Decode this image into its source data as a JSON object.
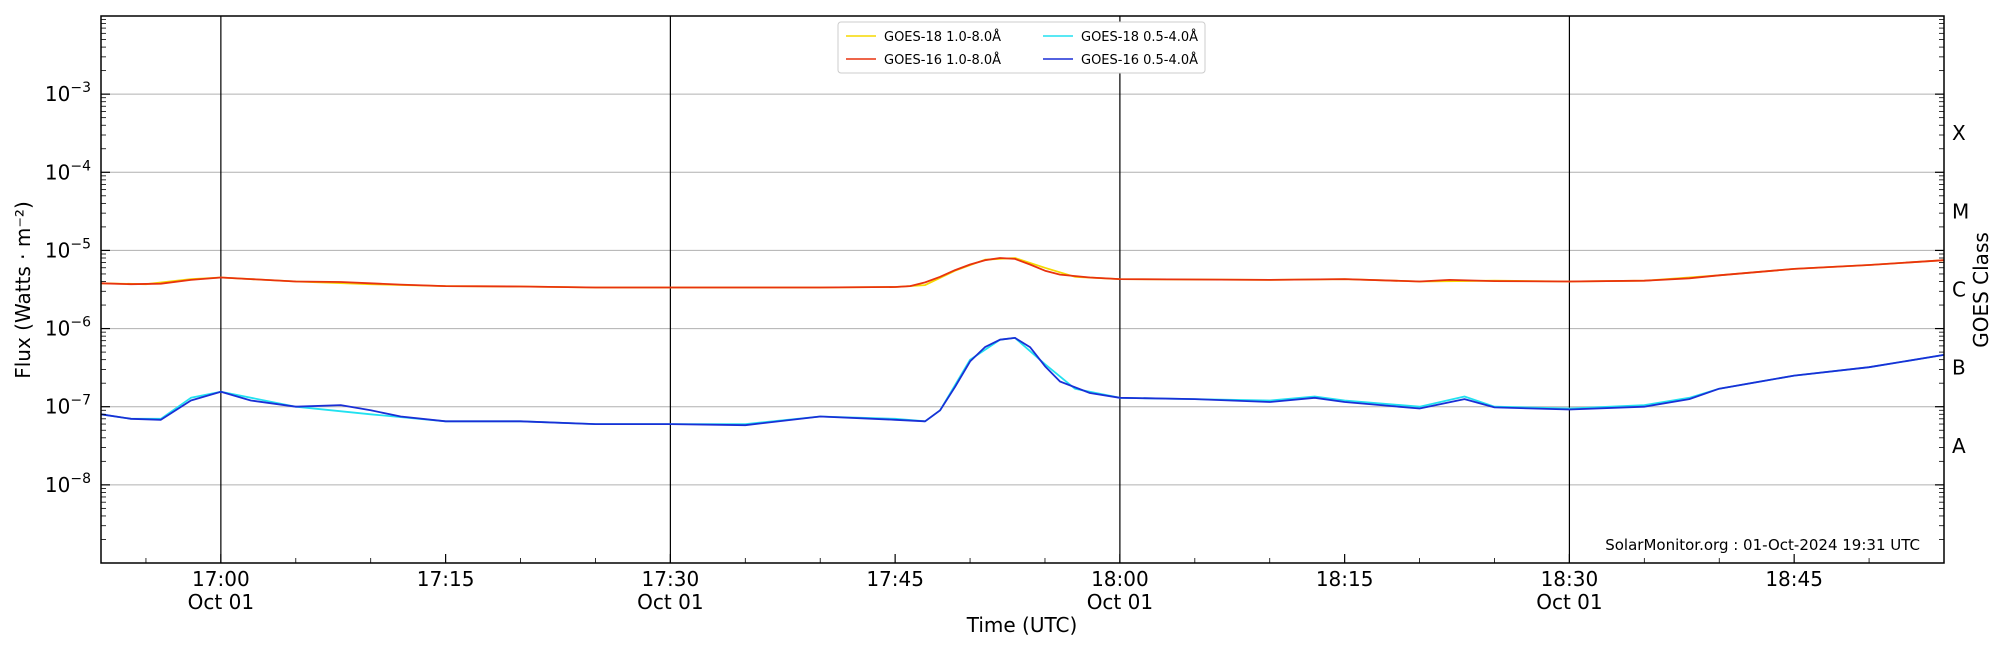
{
  "chart_data": {
    "type": "line",
    "xlabel": "Time (UTC)",
    "ylabel": "Flux (Watts · m⁻²)",
    "y2label": "GOES Class",
    "yscale": "log",
    "ylim": [
      1e-09,
      0.01
    ],
    "xlim": [
      "16:52",
      "18:55"
    ],
    "grid": true,
    "legend_position": "top-center",
    "credit": "SolarMonitor.org : 01-Oct-2024 19:31 UTC",
    "x_ticks": [
      {
        "time": "17:00",
        "date": "Oct 01",
        "major": true
      },
      {
        "time": "17:15",
        "date": "",
        "major": false
      },
      {
        "time": "17:30",
        "date": "Oct 01",
        "major": true
      },
      {
        "time": "17:45",
        "date": "",
        "major": false
      },
      {
        "time": "18:00",
        "date": "Oct 01",
        "major": true
      },
      {
        "time": "18:15",
        "date": "",
        "major": false
      },
      {
        "time": "18:30",
        "date": "Oct 01",
        "major": true
      },
      {
        "time": "18:45",
        "date": "",
        "major": false
      }
    ],
    "y_ticks": [
      {
        "exp": -8,
        "base": "10",
        "sup": "−8"
      },
      {
        "exp": -7,
        "base": "10",
        "sup": "−7"
      },
      {
        "exp": -6,
        "base": "10",
        "sup": "−6"
      },
      {
        "exp": -5,
        "base": "10",
        "sup": "−5"
      },
      {
        "exp": -4,
        "base": "10",
        "sup": "−4"
      },
      {
        "exp": -3,
        "base": "10",
        "sup": "−3"
      }
    ],
    "goes_classes": [
      {
        "label": "A",
        "log_flux": -7.5
      },
      {
        "label": "B",
        "log_flux": -6.5
      },
      {
        "label": "C",
        "log_flux": -5.5
      },
      {
        "label": "M",
        "log_flux": -4.5
      },
      {
        "label": "X",
        "log_flux": -3.5
      }
    ],
    "series": [
      {
        "name": "GOES-18 1.0-8.0Å",
        "color": "#f5d800",
        "x": [
          "16:52",
          "16:55",
          "16:58",
          "17:00",
          "17:05",
          "17:10",
          "17:15",
          "17:20",
          "17:25",
          "17:30",
          "17:35",
          "17:40",
          "17:45",
          "17:47",
          "17:49",
          "17:51",
          "17:53",
          "17:55",
          "17:57",
          "18:00",
          "18:05",
          "18:10",
          "18:15",
          "18:20",
          "18:25",
          "18:30",
          "18:35",
          "18:40",
          "18:45",
          "18:50",
          "18:55"
        ],
        "values": [
          3.8e-06,
          3.7e-06,
          4.3e-06,
          4.5e-06,
          4e-06,
          3.7e-06,
          3.5e-06,
          3.45e-06,
          3.35e-06,
          3.35e-06,
          3.35e-06,
          3.35e-06,
          3.4e-06,
          3.6e-06,
          5.5e-06,
          7.6e-06,
          8e-06,
          6e-06,
          4.6e-06,
          4.3e-06,
          4.25e-06,
          4.2e-06,
          4.3e-06,
          4e-06,
          4.1e-06,
          4e-06,
          4.1e-06,
          4.8e-06,
          5.8e-06,
          6.5e-06,
          7.5e-06
        ]
      },
      {
        "name": "GOES-16 1.0-8.0Å",
        "color": "#e8320f",
        "x": [
          "16:52",
          "16:54",
          "16:56",
          "16:58",
          "17:00",
          "17:02",
          "17:05",
          "17:08",
          "17:10",
          "17:12",
          "17:15",
          "17:20",
          "17:25",
          "17:30",
          "17:35",
          "17:40",
          "17:45",
          "17:46",
          "17:47",
          "17:48",
          "17:49",
          "17:50",
          "17:51",
          "17:52",
          "17:53",
          "17:54",
          "17:55",
          "17:56",
          "17:58",
          "18:00",
          "18:05",
          "18:10",
          "18:15",
          "18:20",
          "18:22",
          "18:25",
          "18:30",
          "18:35",
          "18:38",
          "18:40",
          "18:45",
          "18:50",
          "18:55"
        ],
        "values": [
          3.8e-06,
          3.7e-06,
          3.75e-06,
          4.2e-06,
          4.5e-06,
          4.3e-06,
          4e-06,
          3.95e-06,
          3.8e-06,
          3.65e-06,
          3.5e-06,
          3.45e-06,
          3.35e-06,
          3.35e-06,
          3.35e-06,
          3.35e-06,
          3.4e-06,
          3.5e-06,
          3.9e-06,
          4.6e-06,
          5.6e-06,
          6.6e-06,
          7.5e-06,
          8e-06,
          7.8e-06,
          6.6e-06,
          5.5e-06,
          4.9e-06,
          4.5e-06,
          4.3e-06,
          4.25e-06,
          4.2e-06,
          4.3e-06,
          4e-06,
          4.2e-06,
          4.05e-06,
          4e-06,
          4.1e-06,
          4.4e-06,
          4.8e-06,
          5.8e-06,
          6.5e-06,
          7.5e-06
        ]
      },
      {
        "name": "GOES-18 0.5-4.0Å",
        "color": "#22e1f0",
        "x": [
          "16:52",
          "16:54",
          "16:56",
          "16:58",
          "17:00",
          "17:05",
          "17:10",
          "17:15",
          "17:20",
          "17:25",
          "17:30",
          "17:35",
          "17:40",
          "17:45",
          "17:47",
          "17:48",
          "17:50",
          "17:52",
          "17:53",
          "17:55",
          "17:57",
          "18:00",
          "18:05",
          "18:10",
          "18:13",
          "18:15",
          "18:20",
          "18:23",
          "18:25",
          "18:30",
          "18:35",
          "18:38",
          "18:40",
          "18:45",
          "18:50",
          "18:55"
        ],
        "values": [
          8e-08,
          7e-08,
          7e-08,
          1.3e-07,
          1.55e-07,
          1e-07,
          8e-08,
          6.5e-08,
          6.5e-08,
          6e-08,
          6e-08,
          6e-08,
          7.5e-08,
          7e-08,
          6.5e-08,
          9e-08,
          4e-07,
          7.2e-07,
          7.6e-07,
          3.5e-07,
          1.7e-07,
          1.3e-07,
          1.25e-07,
          1.2e-07,
          1.35e-07,
          1.2e-07,
          1e-07,
          1.35e-07,
          1e-07,
          9.5e-08,
          1.05e-07,
          1.3e-07,
          1.7e-07,
          2.5e-07,
          3.2e-07,
          4.6e-07
        ]
      },
      {
        "name": "GOES-16 0.5-4.0Å",
        "color": "#1a2fd6",
        "x": [
          "16:52",
          "16:54",
          "16:56",
          "16:58",
          "17:00",
          "17:02",
          "17:05",
          "17:08",
          "17:10",
          "17:12",
          "17:15",
          "17:20",
          "17:25",
          "17:30",
          "17:35",
          "17:40",
          "17:45",
          "17:47",
          "17:48",
          "17:49",
          "17:50",
          "17:51",
          "17:52",
          "17:53",
          "17:54",
          "17:55",
          "17:56",
          "17:58",
          "18:00",
          "18:05",
          "18:10",
          "18:13",
          "18:15",
          "18:20",
          "18:23",
          "18:25",
          "18:30",
          "18:35",
          "18:38",
          "18:40",
          "18:45",
          "18:50",
          "18:55"
        ],
        "values": [
          8e-08,
          7e-08,
          6.8e-08,
          1.2e-07,
          1.55e-07,
          1.2e-07,
          1e-07,
          1.05e-07,
          9e-08,
          7.5e-08,
          6.5e-08,
          6.5e-08,
          6e-08,
          6e-08,
          5.8e-08,
          7.5e-08,
          6.8e-08,
          6.5e-08,
          9e-08,
          1.8e-07,
          3.8e-07,
          5.8e-07,
          7.2e-07,
          7.6e-07,
          5.8e-07,
          3.3e-07,
          2.1e-07,
          1.5e-07,
          1.3e-07,
          1.25e-07,
          1.15e-07,
          1.3e-07,
          1.15e-07,
          9.5e-08,
          1.25e-07,
          9.8e-08,
          9.2e-08,
          1e-07,
          1.25e-07,
          1.7e-07,
          2.5e-07,
          3.2e-07,
          4.6e-07
        ]
      }
    ]
  }
}
